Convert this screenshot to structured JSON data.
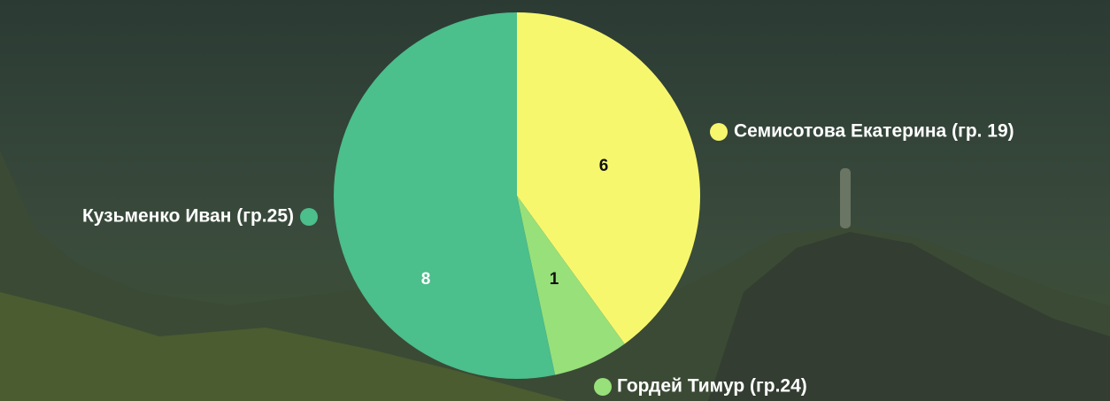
{
  "chart_data": {
    "type": "pie",
    "categories": [
      "Семисотова Екатерина (гр. 19)",
      "Гордей Тимур (гр.24)",
      "Кузьменко Иван (гр.25)"
    ],
    "values": [
      6,
      1,
      8
    ],
    "colors": [
      "#f7f76e",
      "#98e07a",
      "#4bbf8c"
    ]
  }
}
